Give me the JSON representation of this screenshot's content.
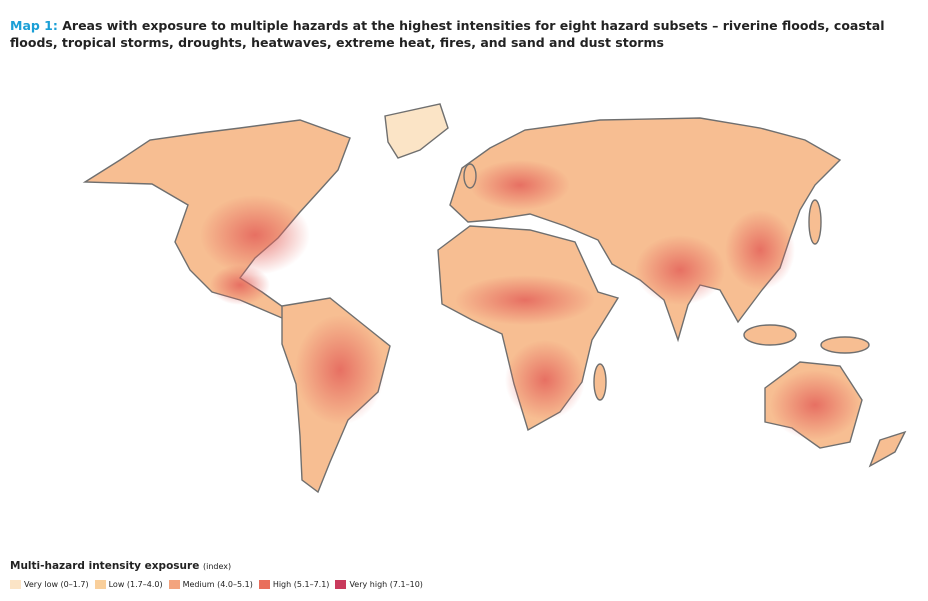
{
  "header": {
    "label": "Map 1:",
    "title": "Areas with exposure to multiple hazards at the highest intensities for eight hazard subsets – riverine floods, coastal floods, tropical storms, droughts, heatwaves, extreme heat, fires, and sand and dust storms"
  },
  "legend": {
    "title": "Multi-hazard intensity exposure",
    "unit": "(index)",
    "items": [
      {
        "label": "Very low (0–1.7)",
        "color": "#fbe4c6"
      },
      {
        "label": "Low (1.7–4.0)",
        "color": "#f9cf9b"
      },
      {
        "label": "Medium (4.0–5.1)",
        "color": "#f3a47e"
      },
      {
        "label": "High (5.1–7.1)",
        "color": "#e96f5b"
      },
      {
        "label": "Very high (7.1–10)",
        "color": "#c93a5c"
      }
    ]
  }
}
